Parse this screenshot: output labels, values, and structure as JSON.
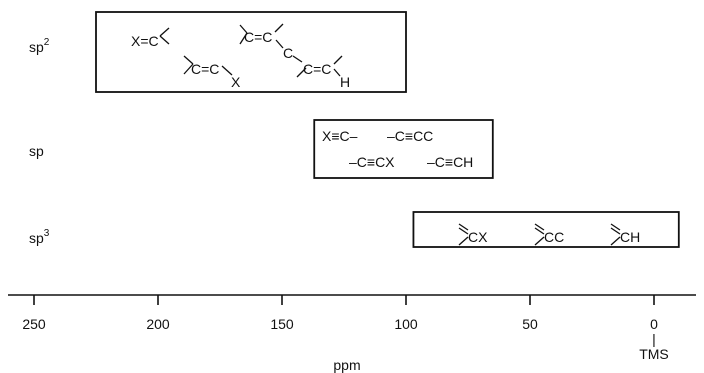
{
  "chart_data": {
    "type": "range-diagram",
    "xlabel": "ppm",
    "xlim": [
      260,
      -10
    ],
    "ticks": [
      {
        "value": 250,
        "label": "250"
      },
      {
        "value": 200,
        "label": "200"
      },
      {
        "value": 150,
        "label": "150"
      },
      {
        "value": 100,
        "label": "100"
      },
      {
        "value": 50,
        "label": "50"
      },
      {
        "value": 0,
        "label": "0"
      }
    ],
    "reference": {
      "value": 0,
      "label": "TMS"
    },
    "rows": [
      {
        "name": "sp",
        "superscript": "2",
        "range": [
          225,
          100
        ],
        "fragments": [
          "X=C",
          "C=C",
          "C",
          "C=C",
          "X",
          "C=C",
          "H"
        ]
      },
      {
        "name": "sp",
        "superscript": "",
        "range": [
          137,
          65
        ],
        "fragments": [
          "X≡C–",
          "–C≡CC",
          "–C≡CX",
          "–C≡CH"
        ]
      },
      {
        "name": "sp",
        "superscript": "3",
        "range": [
          97,
          -10
        ],
        "fragments": [
          "CX",
          "CC",
          "CH"
        ]
      }
    ]
  }
}
